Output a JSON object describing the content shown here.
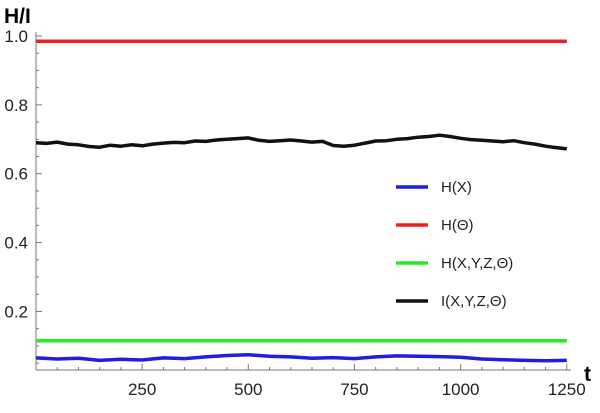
{
  "chart_data": {
    "type": "line",
    "xlabel": "t",
    "ylabel": "H/I",
    "xlim": [
      0,
      1260
    ],
    "ylim": [
      0.03,
      1.0
    ],
    "x_ticks": [
      250,
      500,
      750,
      1000,
      1250
    ],
    "x_tick_labels": [
      "250",
      "500",
      "750",
      "1000",
      "1250"
    ],
    "y_ticks": [
      0.2,
      0.4,
      0.6,
      0.8,
      1.0
    ],
    "y_tick_labels": [
      "0.2",
      "0.4",
      "0.6",
      "0.8",
      "1.0"
    ],
    "legend_position": "right",
    "series": [
      {
        "name": "H(X)",
        "color": "#1f1fdd",
        "x": [
          0,
          50,
          100,
          150,
          200,
          250,
          300,
          350,
          400,
          450,
          500,
          550,
          600,
          650,
          700,
          750,
          800,
          850,
          900,
          950,
          1000,
          1050,
          1100,
          1150,
          1200,
          1250
        ],
        "y": [
          0.065,
          0.062,
          0.064,
          0.058,
          0.061,
          0.059,
          0.065,
          0.063,
          0.068,
          0.072,
          0.074,
          0.07,
          0.068,
          0.064,
          0.066,
          0.063,
          0.068,
          0.071,
          0.07,
          0.069,
          0.067,
          0.062,
          0.06,
          0.058,
          0.057,
          0.058
        ]
      },
      {
        "name": "H(Θ)",
        "color": "#e8201f",
        "x": [
          0,
          1250
        ],
        "y": [
          0.985,
          0.985
        ]
      },
      {
        "name": "H(X,Y,Z,Θ)",
        "color": "#22ee22",
        "x": [
          0,
          1250
        ],
        "y": [
          0.115,
          0.115
        ]
      },
      {
        "name": "I(X,Y,Z,Θ)",
        "color": "#111111",
        "x": [
          0,
          25,
          50,
          75,
          100,
          125,
          150,
          175,
          200,
          225,
          250,
          275,
          300,
          325,
          350,
          375,
          400,
          425,
          450,
          475,
          500,
          525,
          550,
          575,
          600,
          625,
          650,
          675,
          700,
          725,
          750,
          775,
          800,
          825,
          850,
          875,
          900,
          925,
          950,
          975,
          1000,
          1025,
          1050,
          1075,
          1100,
          1125,
          1150,
          1175,
          1200,
          1225,
          1250
        ],
        "y": [
          0.69,
          0.688,
          0.692,
          0.686,
          0.684,
          0.679,
          0.677,
          0.683,
          0.68,
          0.684,
          0.681,
          0.686,
          0.689,
          0.691,
          0.69,
          0.695,
          0.694,
          0.698,
          0.7,
          0.702,
          0.704,
          0.697,
          0.694,
          0.696,
          0.698,
          0.695,
          0.692,
          0.694,
          0.682,
          0.68,
          0.683,
          0.689,
          0.695,
          0.696,
          0.7,
          0.702,
          0.706,
          0.708,
          0.712,
          0.708,
          0.703,
          0.699,
          0.697,
          0.695,
          0.693,
          0.696,
          0.69,
          0.686,
          0.68,
          0.676,
          0.672
        ]
      }
    ]
  }
}
